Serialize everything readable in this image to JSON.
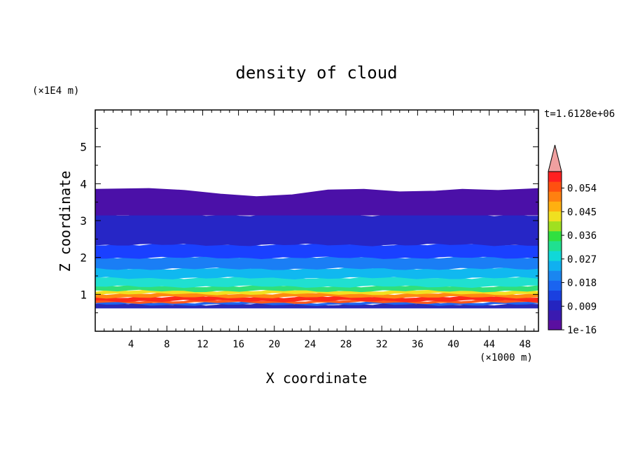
{
  "chart_data": {
    "type": "heatmap",
    "title": "density of cloud",
    "xlabel": "X coordinate",
    "ylabel": "Z coordinate",
    "x_unit": "(×1000 m)",
    "y_unit": "(×1E4 m)",
    "time_label": "t=1.6128e+06",
    "xlim": [
      0,
      49.5
    ],
    "ylim": [
      0,
      6
    ],
    "x_ticks": [
      4,
      8,
      12,
      16,
      20,
      24,
      28,
      32,
      36,
      40,
      44,
      48
    ],
    "y_ticks": [
      1,
      2,
      3,
      4,
      5
    ],
    "layers": [
      {
        "z_bottom": 0.63,
        "z_top": 0.73,
        "color": "#2a2ab8"
      },
      {
        "z_bottom": 0.73,
        "z_top": 0.78,
        "color": "#1e64f0"
      },
      {
        "z_bottom": 0.78,
        "z_top": 0.83,
        "color": "#ff5a1e"
      },
      {
        "z_bottom": 0.83,
        "z_top": 0.93,
        "color": "#ff2a1a"
      },
      {
        "z_bottom": 0.93,
        "z_top": 1.02,
        "color": "#ff8a10"
      },
      {
        "z_bottom": 1.02,
        "z_top": 1.1,
        "color": "#f2e020"
      },
      {
        "z_bottom": 1.1,
        "z_top": 1.22,
        "color": "#30e07a"
      },
      {
        "z_bottom": 1.22,
        "z_top": 1.45,
        "color": "#20e0d0"
      },
      {
        "z_bottom": 1.45,
        "z_top": 1.7,
        "color": "#10b8f0"
      },
      {
        "z_bottom": 1.7,
        "z_top": 2.0,
        "color": "#1a7ef5"
      },
      {
        "z_bottom": 2.0,
        "z_top": 2.35,
        "color": "#1a40ff"
      },
      {
        "z_bottom": 2.35,
        "z_top": 3.15,
        "color": "#2626c6"
      },
      {
        "z_bottom": 3.15,
        "z_top": 3.8,
        "color": "#4b10a8"
      }
    ],
    "cloud_top": [
      [
        0,
        3.85
      ],
      [
        6,
        3.87
      ],
      [
        10,
        3.82
      ],
      [
        14,
        3.72
      ],
      [
        18,
        3.65
      ],
      [
        22,
        3.7
      ],
      [
        26,
        3.83
      ],
      [
        30,
        3.85
      ],
      [
        34,
        3.78
      ],
      [
        38,
        3.8
      ],
      [
        41,
        3.85
      ],
      [
        45,
        3.82
      ],
      [
        49.5,
        3.87
      ]
    ],
    "colorbar": {
      "labels": [
        "1e-16",
        "0.009",
        "0.018",
        "0.027",
        "0.036",
        "0.045",
        "0.054"
      ],
      "colors": [
        "#5a0fa0",
        "#3a1ab0",
        "#2424c0",
        "#1a40e0",
        "#1a64f0",
        "#1a86f0",
        "#10b0f0",
        "#10d8d8",
        "#20e090",
        "#30e040",
        "#a0e020",
        "#f0e020",
        "#ffb010",
        "#ff8010",
        "#ff5010",
        "#ff2020"
      ],
      "extend_color": "#f0a0a0"
    }
  }
}
